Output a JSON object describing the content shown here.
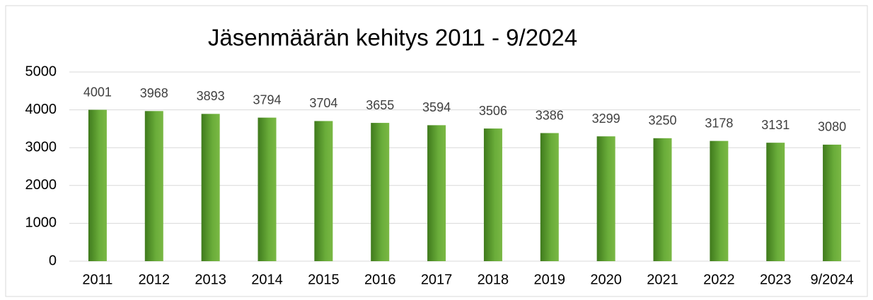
{
  "chart_data": {
    "type": "bar",
    "title": "Jäsenmäärän kehitys 2011 - 9/2024",
    "categories": [
      "2011",
      "2012",
      "2013",
      "2014",
      "2015",
      "2016",
      "2017",
      "2018",
      "2019",
      "2020",
      "2021",
      "2022",
      "2023",
      "9/2024"
    ],
    "values": [
      4001,
      3968,
      3893,
      3794,
      3704,
      3655,
      3594,
      3506,
      3386,
      3299,
      3250,
      3178,
      3131,
      3080
    ],
    "color": "#5a9a30",
    "ylim": [
      0,
      5000
    ],
    "yticks": [
      0,
      1000,
      2000,
      3000,
      4000,
      5000
    ],
    "grid": true
  }
}
